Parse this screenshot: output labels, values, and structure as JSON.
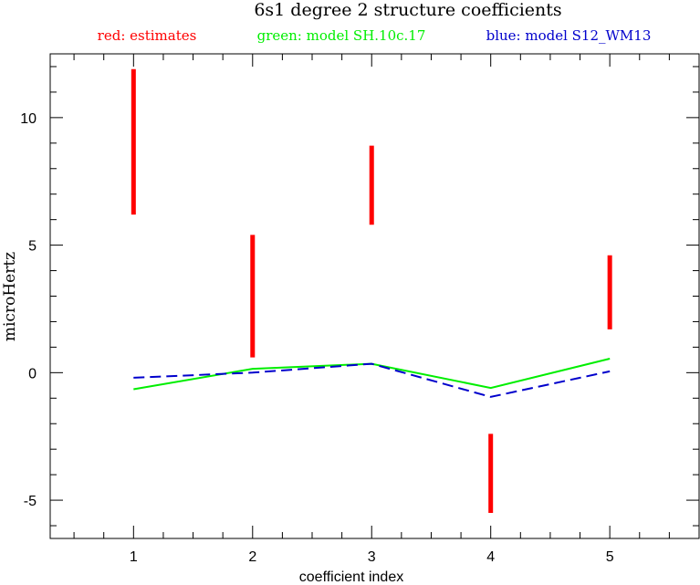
{
  "chart_data": {
    "type": "line",
    "title": "6s1 degree 2 structure coefficients",
    "legend_entries": [
      {
        "label": "red: estimates",
        "color": "#ff0000"
      },
      {
        "label": "green: model SH.10c.17",
        "color": "#00ee00"
      },
      {
        "label": "blue: model S12_WM13",
        "color": "#0000cc"
      }
    ],
    "legend_position": "top",
    "xlabel": "coefficient index",
    "ylabel": "microHertz",
    "xlim": [
      0.3,
      5.75
    ],
    "ylim": [
      -6.5,
      12.5
    ],
    "x_ticks": [
      1,
      2,
      3,
      4,
      5
    ],
    "y_ticks": [
      -5,
      0,
      5,
      10
    ],
    "x": [
      1,
      2,
      3,
      4,
      5
    ],
    "estimates": [
      {
        "x": 1,
        "low": 6.2,
        "high": 11.9
      },
      {
        "x": 2,
        "low": 0.6,
        "high": 5.4
      },
      {
        "x": 3,
        "low": 5.8,
        "high": 8.9
      },
      {
        "x": 4,
        "low": -5.5,
        "high": -2.4
      },
      {
        "x": 5,
        "low": 1.7,
        "high": 4.6
      }
    ],
    "series": [
      {
        "name": "model SH.10c.17",
        "color": "#00ee00",
        "dash": "solid",
        "values": [
          -0.65,
          0.15,
          0.35,
          -0.6,
          0.55
        ]
      },
      {
        "name": "model S12_WM13",
        "color": "#0000cc",
        "dash": "dashed",
        "values": [
          -0.2,
          0.0,
          0.35,
          -0.95,
          0.05
        ]
      }
    ],
    "grid": false
  }
}
